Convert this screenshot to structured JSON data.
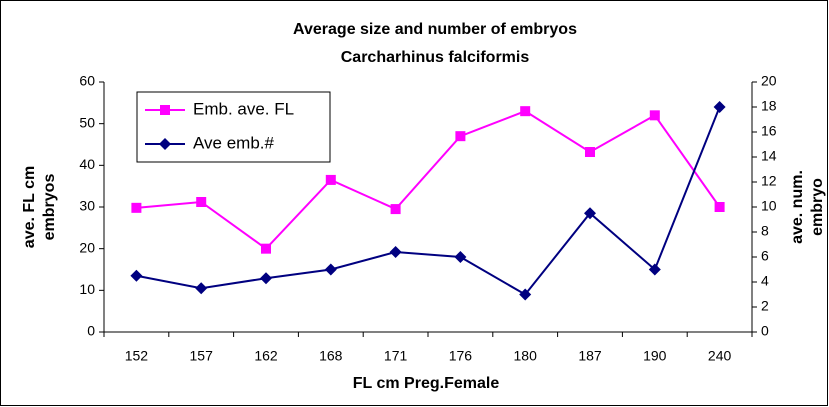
{
  "chart_data": {
    "type": "line",
    "title": [
      "Average size and number of embryos",
      "Carcharhinus falciformis"
    ],
    "xlabel": "FL cm Preg.Female",
    "ylabel": [
      "ave. FL cm",
      "embryos"
    ],
    "y2label": [
      "ave. num.",
      "embryo"
    ],
    "categories": [
      "152",
      "157",
      "162",
      "168",
      "171",
      "176",
      "180",
      "187",
      "190",
      "240"
    ],
    "series": [
      {
        "name": "Emb. ave. FL",
        "color": "#ff00ff",
        "marker": "square",
        "values": [
          29.8,
          31.2,
          20,
          36.5,
          29.5,
          47,
          53,
          43.2,
          52,
          30
        ]
      },
      {
        "name": "Ave emb.#",
        "color": "#000080",
        "marker": "diamond",
        "axis": "y2",
        "values": [
          4.5,
          3.5,
          4.3,
          5,
          6.4,
          6,
          3,
          9.5,
          5,
          18
        ]
      }
    ],
    "ylim": [
      0,
      60
    ],
    "yticks": [
      0,
      10,
      20,
      30,
      40,
      50,
      60
    ],
    "y2lim": [
      0,
      20
    ],
    "y2ticks": [
      0,
      2,
      4,
      6,
      8,
      10,
      12,
      14,
      16,
      18,
      20
    ],
    "grid": false,
    "legend": "upper left"
  }
}
